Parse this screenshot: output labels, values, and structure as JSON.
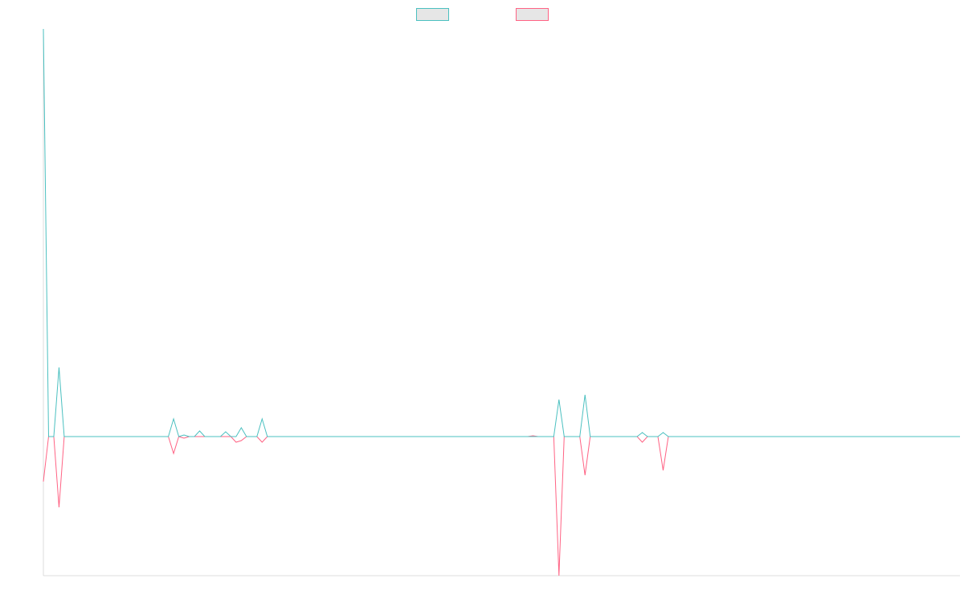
{
  "chart_data": {
    "type": "line",
    "x": [
      0,
      1,
      2,
      3,
      4,
      24,
      25,
      26,
      27,
      28,
      29,
      30,
      31,
      34,
      35,
      36,
      37,
      38,
      39,
      41,
      42,
      43,
      93,
      94,
      95,
      98,
      99,
      100,
      103,
      104,
      105,
      114,
      115,
      116,
      118,
      119,
      120,
      176
    ],
    "xlim": [
      0,
      176
    ],
    "ylim": [
      -17.3,
      50.7
    ],
    "series": [
      {
        "color": "#ff6384",
        "values": [
          -5.6,
          0,
          0,
          -8.8,
          0,
          0,
          -2.1,
          0,
          -0.2,
          0,
          0,
          0,
          0,
          0,
          0,
          0,
          -0.7,
          -0.5,
          0,
          0,
          -0.7,
          0,
          0,
          0.1,
          0,
          0,
          -17.3,
          0,
          0,
          -4.8,
          0,
          0,
          -0.7,
          0,
          0,
          -4.2,
          0,
          0
        ]
      },
      {
        "color": "#4bc0c0",
        "values": [
          50.7,
          0,
          0,
          8.6,
          0,
          0,
          2.2,
          0,
          0.2,
          0,
          0,
          0.7,
          0,
          0,
          0.6,
          0,
          0,
          1.1,
          0,
          0,
          2.2,
          0,
          0,
          0,
          0,
          0,
          4.6,
          0,
          0,
          5.2,
          0,
          0,
          0.5,
          0,
          0,
          0.5,
          0,
          0
        ]
      }
    ],
    "legend_position": "top"
  }
}
